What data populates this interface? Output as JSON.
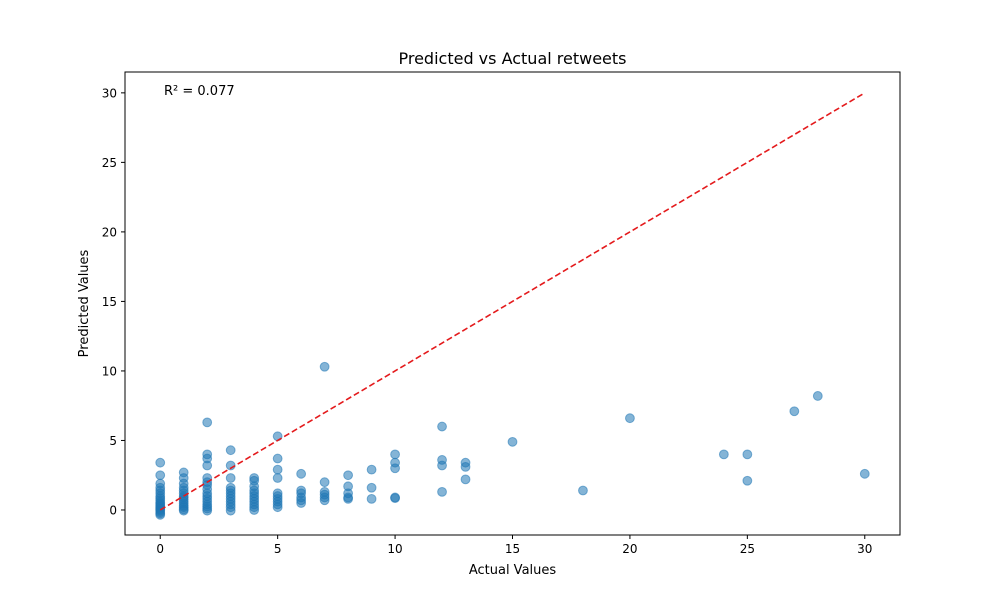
{
  "chart_data": {
    "type": "scatter",
    "title": "Predicted vs Actual retweets",
    "xlabel": "Actual Values",
    "ylabel": "Predicted Values",
    "xlim": [
      -1.5,
      31.5
    ],
    "ylim": [
      -1.8,
      31.5
    ],
    "xticks": [
      0,
      5,
      10,
      15,
      20,
      25,
      30
    ],
    "yticks": [
      0,
      5,
      10,
      15,
      20,
      25,
      30
    ],
    "grid": false,
    "annotation": "R² = 0.077",
    "point_color": "#1f77b4",
    "point_alpha": 0.55,
    "reference_line": {
      "x": [
        0,
        30
      ],
      "y": [
        0,
        30
      ],
      "color": "#e41a1c",
      "style": "dashed"
    },
    "points": [
      [
        0,
        3.4
      ],
      [
        0,
        2.5
      ],
      [
        0,
        1.9
      ],
      [
        0,
        1.6
      ],
      [
        0,
        1.4
      ],
      [
        0,
        1.2
      ],
      [
        0,
        1.0
      ],
      [
        0,
        0.85
      ],
      [
        0,
        0.7
      ],
      [
        0,
        0.55
      ],
      [
        0,
        0.45
      ],
      [
        0,
        0.35
      ],
      [
        0,
        0.25
      ],
      [
        0,
        0.15
      ],
      [
        0,
        0.05
      ],
      [
        0,
        -0.05
      ],
      [
        0,
        -0.15
      ],
      [
        0,
        -0.25
      ],
      [
        0,
        -0.35
      ],
      [
        1,
        2.7
      ],
      [
        1,
        2.3
      ],
      [
        1,
        1.9
      ],
      [
        1,
        1.6
      ],
      [
        1,
        1.4
      ],
      [
        1,
        1.2
      ],
      [
        1,
        1.0
      ],
      [
        1,
        0.9
      ],
      [
        1,
        0.75
      ],
      [
        1,
        0.6
      ],
      [
        1,
        0.45
      ],
      [
        1,
        0.3
      ],
      [
        1,
        0.2
      ],
      [
        1,
        0.05
      ],
      [
        1,
        -0.05
      ],
      [
        2,
        6.3
      ],
      [
        2,
        4.0
      ],
      [
        2,
        3.7
      ],
      [
        2,
        3.2
      ],
      [
        2,
        2.3
      ],
      [
        2,
        2.0
      ],
      [
        2,
        1.8
      ],
      [
        2,
        1.5
      ],
      [
        2,
        1.2
      ],
      [
        2,
        1.0
      ],
      [
        2,
        0.8
      ],
      [
        2,
        0.6
      ],
      [
        2,
        0.4
      ],
      [
        2,
        0.25
      ],
      [
        2,
        0.1
      ],
      [
        2,
        -0.05
      ],
      [
        3,
        4.3
      ],
      [
        3,
        3.2
      ],
      [
        3,
        2.3
      ],
      [
        3,
        1.6
      ],
      [
        3,
        1.4
      ],
      [
        3,
        1.2
      ],
      [
        3,
        1.0
      ],
      [
        3,
        0.8
      ],
      [
        3,
        0.6
      ],
      [
        3,
        0.4
      ],
      [
        3,
        0.2
      ],
      [
        3,
        -0.05
      ],
      [
        4,
        2.3
      ],
      [
        4,
        2.1
      ],
      [
        4,
        1.7
      ],
      [
        4,
        1.4
      ],
      [
        4,
        1.2
      ],
      [
        4,
        1.0
      ],
      [
        4,
        0.8
      ],
      [
        4,
        0.6
      ],
      [
        4,
        0.4
      ],
      [
        4,
        0.2
      ],
      [
        4,
        0.0
      ],
      [
        5,
        5.3
      ],
      [
        5,
        3.7
      ],
      [
        5,
        2.9
      ],
      [
        5,
        2.3
      ],
      [
        5,
        1.2
      ],
      [
        5,
        1.0
      ],
      [
        5,
        0.8
      ],
      [
        5,
        0.6
      ],
      [
        5,
        0.4
      ],
      [
        5,
        0.2
      ],
      [
        6,
        2.6
      ],
      [
        6,
        1.4
      ],
      [
        6,
        1.2
      ],
      [
        6,
        0.9
      ],
      [
        6,
        0.7
      ],
      [
        6,
        0.5
      ],
      [
        7,
        10.3
      ],
      [
        7,
        2.0
      ],
      [
        7,
        1.3
      ],
      [
        7,
        1.1
      ],
      [
        7,
        0.9
      ],
      [
        7,
        0.7
      ],
      [
        8,
        2.5
      ],
      [
        8,
        1.7
      ],
      [
        8,
        1.2
      ],
      [
        8,
        0.9
      ],
      [
        8,
        0.8
      ],
      [
        9,
        2.9
      ],
      [
        9,
        1.6
      ],
      [
        9,
        0.8
      ],
      [
        10,
        4.0
      ],
      [
        10,
        3.4
      ],
      [
        10,
        3.0
      ],
      [
        10,
        0.9
      ],
      [
        10,
        0.85
      ],
      [
        12,
        6.0
      ],
      [
        12,
        3.6
      ],
      [
        12,
        3.2
      ],
      [
        12,
        1.3
      ],
      [
        13,
        3.4
      ],
      [
        13,
        3.1
      ],
      [
        13,
        2.2
      ],
      [
        15,
        4.9
      ],
      [
        18,
        1.4
      ],
      [
        20,
        6.6
      ],
      [
        24,
        4.0
      ],
      [
        25,
        4.0
      ],
      [
        25,
        2.1
      ],
      [
        27,
        7.1
      ],
      [
        28,
        8.2
      ],
      [
        30,
        2.6
      ]
    ]
  }
}
